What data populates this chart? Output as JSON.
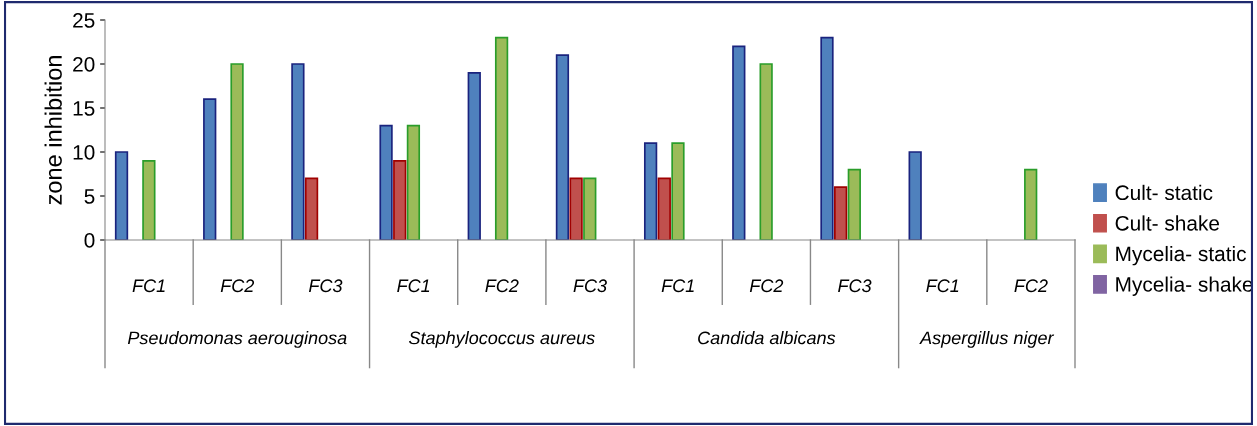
{
  "chart_data": {
    "type": "bar",
    "ylabel": "zone inhibition",
    "categories": [
      "FC1",
      "FC2",
      "FC3",
      "FC1",
      "FC2",
      "FC3",
      "FC1",
      "FC2",
      "FC3",
      "FC1",
      "FC2"
    ],
    "series": [
      {
        "name": "Cult- static",
        "color": "#4f81bd",
        "values": [
          10,
          16,
          20,
          13,
          19,
          21,
          11,
          22,
          23,
          10,
          null
        ]
      },
      {
        "name": "Cult- shake",
        "color": "#c0504d",
        "values": [
          null,
          null,
          7,
          9,
          null,
          7,
          7,
          null,
          6,
          null,
          null
        ]
      },
      {
        "name": "Mycelia- static",
        "color": "#9bbb59",
        "values": [
          9,
          20,
          null,
          13,
          23,
          7,
          11,
          20,
          8,
          null,
          8
        ]
      },
      {
        "name": "Mycelia- shake",
        "color": "#8064a2",
        "values": [
          null,
          null,
          null,
          null,
          null,
          null,
          null,
          null,
          null,
          null,
          null
        ]
      }
    ],
    "annotations": [
      "Pseudomonas aerouginosa",
      "Staphylococcus aureus",
      "Candida albicans",
      "Aspergillus niger"
    ],
    "ylim": [
      0,
      25
    ],
    "yticks": [
      0,
      5,
      10,
      15,
      20,
      25
    ],
    "grid": false,
    "legend": "right"
  }
}
